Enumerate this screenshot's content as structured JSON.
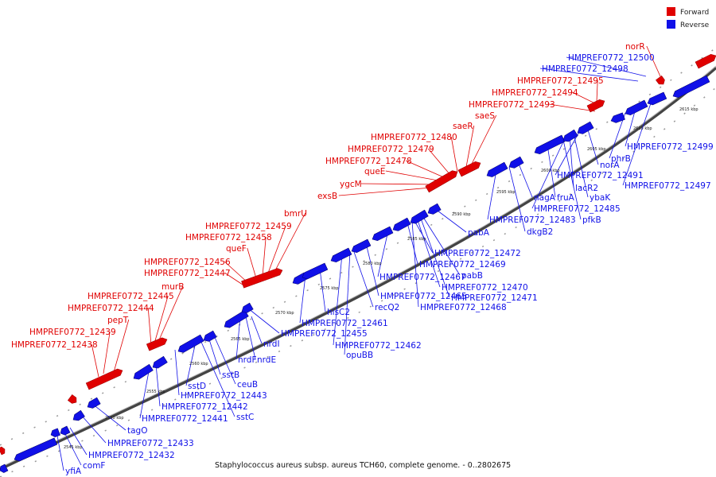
{
  "legend": {
    "forward": "Forward",
    "reverse": "Reverse"
  },
  "colors": {
    "forward": "#e00000",
    "reverse": "#1010e8",
    "backbone": "#555555"
  },
  "caption": "Staphylococcus aureus subsp. aureus TCH60, complete genome. - 0..2802675",
  "ticks": [
    "2545 kbp",
    "2550 kbp",
    "2555 kbp",
    "2560 kbp",
    "2565 kbp",
    "2570 kbp",
    "2575 kbp",
    "2580 kbp",
    "2585 kbp",
    "2590 kbp",
    "2595 kbp",
    "2600 kbp",
    "2605 kbp",
    "2610 kbp",
    "2615 kbp"
  ],
  "forward_labels": [
    "norR",
    "HMPREF0772_12495",
    "HMPREF0772_12494",
    "HMPREF0772_12493",
    "saeS",
    "saeR",
    "HMPREF0772_12480",
    "HMPREF0772_12479",
    "HMPREF0772_12478",
    "queE",
    "ygcM",
    "exsB",
    "bmrU",
    "HMPREF0772_12459",
    "HMPREF0772_12458",
    "queF",
    "HMPREF0772_12456",
    "HMPREF0772_12447",
    "murB",
    "HMPREF0772_12445",
    "HMPREF0772_12444",
    "pepT",
    "HMPREF0772_12439",
    "HMPREF0772_12438"
  ],
  "reverse_labels": [
    "HMPREF0772_12500",
    "HMPREF0772_12498",
    "HMPREF0772_12499",
    "phrB",
    "HMPREF0772_12497",
    "norA",
    "HMPREF0772_12491",
    "lacR2",
    "ybaK",
    "HMPREF0772_12485",
    "pfkB",
    "nagA",
    "fruA",
    "HMPREF0772_12483",
    "dkgB2",
    "pabA",
    "HMPREF0772_12472",
    "HMPREF0772_12469",
    "pabB",
    "HMPREF0772_12467",
    "HMPREF0772_12470",
    "HMPREF0772_12471",
    "HMPREF0772_12465",
    "HMPREF0772_12468",
    "recQ2",
    "hisC2",
    "HMPREF0772_12461",
    "HMPREF0772_12455",
    "HMPREF0772_12462",
    "opuBB",
    "nrdI",
    "nrdF",
    "nrdE",
    "sstB",
    "ceuB",
    "sstD",
    "HMPREF0772_12443",
    "HMPREF0772_12442",
    "HMPREF0772_12441",
    "sstC",
    "tagO",
    "HMPREF0772_12433",
    "HMPREF0772_12432",
    "comF",
    "yfiA"
  ]
}
